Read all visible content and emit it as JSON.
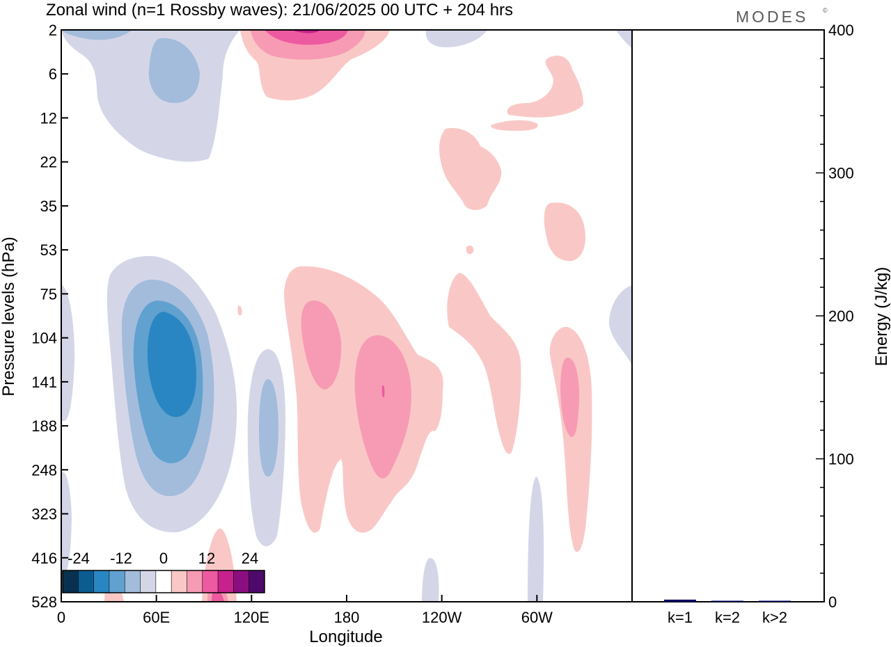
{
  "title": "Zonal wind (n=1 Rossby waves):  21/06/2025  00 UTC  + 204 hrs",
  "logo": "MODES",
  "logo_mark": "©",
  "chart_data": [
    {
      "type": "heatmap",
      "title": "Zonal wind (n=1 Rossby waves):  21/06/2025  00 UTC  + 204 hrs",
      "xlabel": "Longitude",
      "ylabel": "Pressure levels (hPa)",
      "x_ticks": [
        "0",
        "60E",
        "120E",
        "180",
        "120W",
        "60W"
      ],
      "x_tick_values": [
        0,
        60,
        120,
        180,
        240,
        300
      ],
      "xlim": [
        0,
        360
      ],
      "y_ticks": [
        "2",
        "6",
        "12",
        "22",
        "35",
        "53",
        "75",
        "104",
        "141",
        "188",
        "248",
        "323",
        "416",
        "528"
      ],
      "colorbar": {
        "labels": [
          "-24",
          "-12",
          "0",
          "12",
          "24"
        ],
        "label_levels": [
          -24,
          -12,
          0,
          12,
          24
        ],
        "levels": [
          -30,
          -24,
          -18,
          -12,
          -6,
          -3,
          3,
          6,
          12,
          18,
          24,
          30
        ],
        "colors": [
          "#08314f",
          "#0b5c92",
          "#2a86c2",
          "#61a1cf",
          "#a3bcdc",
          "#d4d6e8",
          "#ffffff",
          "#f9c8c6",
          "#f79bb4",
          "#ed5aa0",
          "#c6218c",
          "#8b0e80",
          "#4e0a6b"
        ]
      },
      "features": [
        {
          "sign": "negative",
          "min": -24,
          "lon": 68,
          "pressure": 141
        },
        {
          "sign": "negative",
          "min": -12,
          "lon": 58,
          "pressure": 6
        },
        {
          "sign": "negative",
          "min": -12,
          "lon": 127,
          "pressure": 188
        },
        {
          "sign": "positive",
          "max": 18,
          "lon": 152,
          "pressure": 2
        },
        {
          "sign": "positive",
          "max": 12,
          "lon": 165,
          "pressure": 120
        },
        {
          "sign": "positive",
          "max": 12,
          "lon": 195,
          "pressure": 160
        },
        {
          "sign": "positive",
          "max": 12,
          "lon": 320,
          "pressure": 160
        }
      ]
    },
    {
      "type": "bar",
      "ylabel": "Energy (J/kg)",
      "ylim": [
        0,
        400
      ],
      "y_ticks": [
        "0",
        "100",
        "200",
        "300",
        "400"
      ],
      "categories": [
        "k=1",
        "k=2",
        "k>2"
      ],
      "values": [
        1.5,
        0.6,
        0.6
      ],
      "bar_color": "#000066"
    }
  ]
}
